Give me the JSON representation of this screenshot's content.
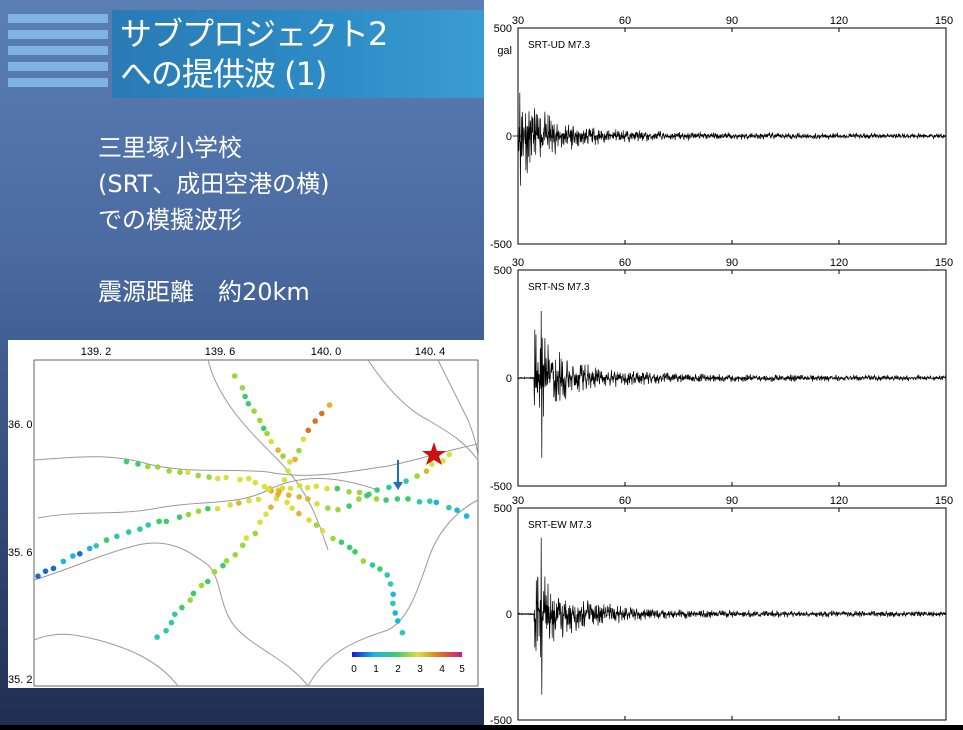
{
  "slide": {
    "title_line1": "サブプロジェクト2",
    "title_line2": "への提供波 (1)",
    "info_line1": "三里塚小学校",
    "info_line2": "(SRT、成田空港の横)",
    "info_line3": "での模擬波形",
    "info_line4": "震源距離　約20km"
  },
  "map": {
    "lon_ticks": [
      "139. 2",
      "139. 6",
      "140. 0",
      "140. 4"
    ],
    "lat_ticks": [
      "36. 0",
      "35. 6",
      "35. 2"
    ],
    "scale_ticks": [
      "0",
      "1",
      "2",
      "3",
      "4",
      "5"
    ],
    "epicenter_icon": "star-icon",
    "site_icon": "arrow-down-icon",
    "colors": {
      "star": "#cc1111",
      "arrow": "#1f6fc0"
    }
  },
  "chart_data": [
    {
      "type": "line",
      "title": "SRT-UD M7.3",
      "x_ticks": [
        "30",
        "60",
        "90",
        "120",
        "150"
      ],
      "y_ticks": [
        "500",
        "0",
        "-500"
      ],
      "ylabel": "gal",
      "xlim": [
        30,
        150
      ],
      "ylim": [
        -500,
        500
      ],
      "peak": {
        "t": 30.5,
        "min": -230,
        "max": 200
      }
    },
    {
      "type": "line",
      "title": "SRT-NS M7.3",
      "x_ticks": [
        "30",
        "60",
        "90",
        "120",
        "150"
      ],
      "y_ticks": [
        "500",
        "0",
        "-500"
      ],
      "xlim": [
        30,
        150
      ],
      "ylim": [
        -500,
        500
      ],
      "peak": {
        "t": 36.5,
        "min": -370,
        "max": 310
      }
    },
    {
      "type": "line",
      "title": "SRT-EW M7.3",
      "x_ticks": [
        "30",
        "60",
        "90",
        "120",
        "150"
      ],
      "y_ticks": [
        "500",
        "0",
        "-500"
      ],
      "xlim": [
        30,
        150
      ],
      "ylim": [
        -500,
        500
      ],
      "peak": {
        "t": 36.5,
        "min": -380,
        "max": 360
      }
    }
  ]
}
